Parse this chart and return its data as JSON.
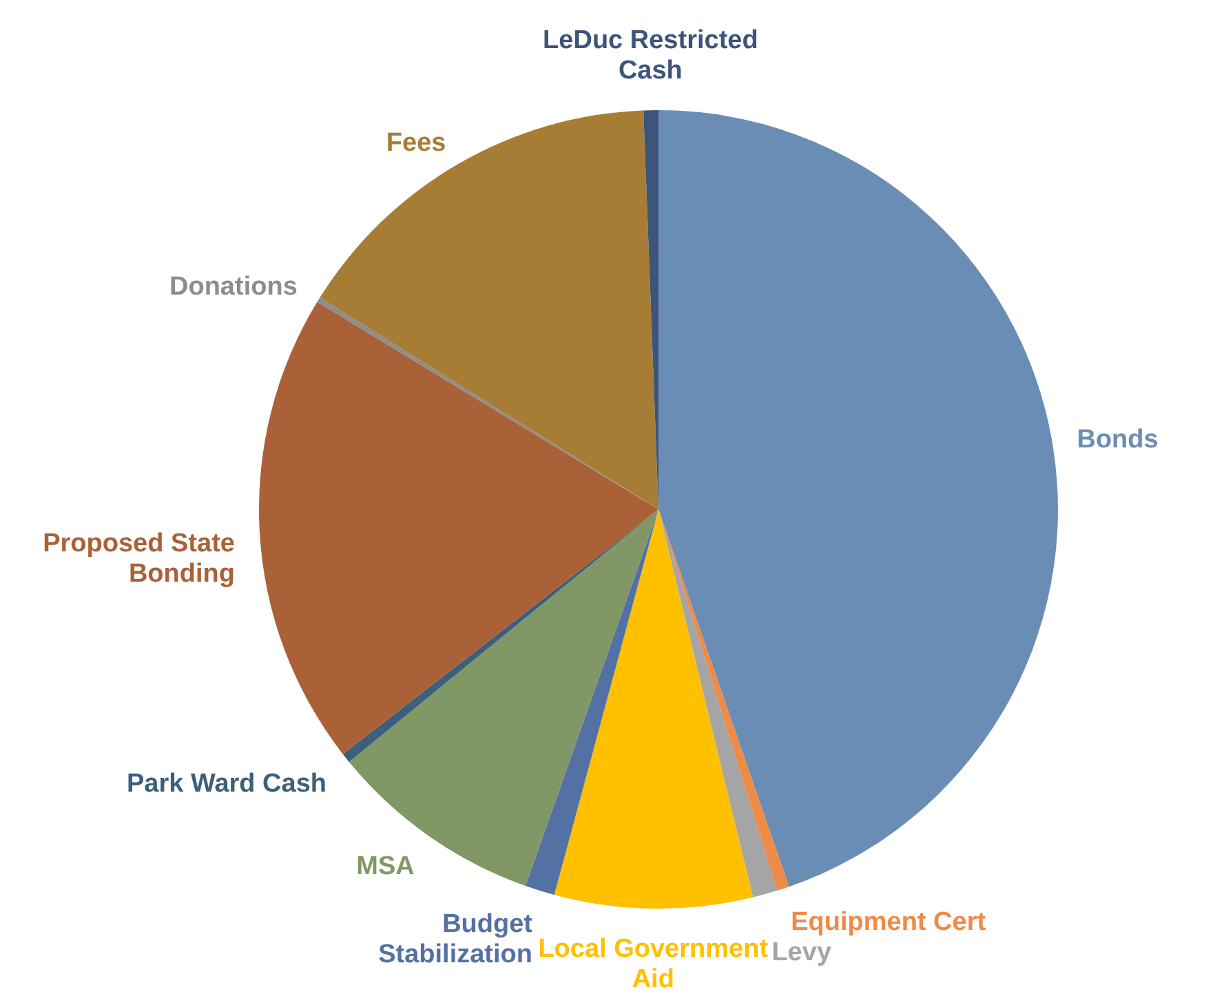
{
  "chart_data": {
    "type": "pie",
    "categories": [
      "Bonds",
      "Equipment Cert",
      "Levy",
      "Local Government Aid",
      "Budget Stabilization",
      "MSA",
      "Park Ward Cash",
      "Proposed State Bonding",
      "Donations",
      "Fees",
      "LeDuc Restricted Cash"
    ],
    "values": [
      44.7,
      0.5,
      1,
      8,
      1.2,
      8.7,
      0.4,
      19.2,
      0.2,
      15.5,
      0.6
    ],
    "colors": [
      "#6a8db5",
      "#ed8b47",
      "#a5a5a5",
      "#ffc000",
      "#5471a3",
      "#819766",
      "#3c5f7a",
      "#aa6138",
      "#8d8d8d",
      "#a77d35",
      "#3c5578"
    ]
  }
}
